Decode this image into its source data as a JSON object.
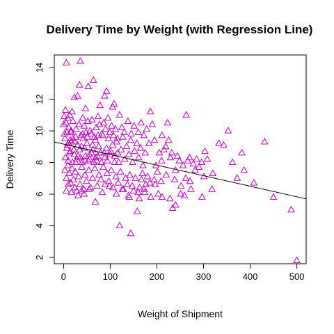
{
  "chart_data": {
    "type": "scatter",
    "title": "Delivery Time by Weight (with Regression Line)",
    "xlabel": "Weight of Shipment",
    "ylabel": "Delivery Time",
    "xlim": [
      -20,
      520
    ],
    "ylim": [
      1.6,
      14.8
    ],
    "x_ticks": [
      0,
      100,
      200,
      300,
      400,
      500
    ],
    "y_ticks": [
      2,
      4,
      6,
      8,
      10,
      12,
      14
    ],
    "marker": "open-triangle",
    "marker_color": "#C000C0",
    "grid": false,
    "regression_line": {
      "x": [
        -20,
        520
      ],
      "y": [
        9.3,
        5.7
      ],
      "color": "#000000"
    },
    "points": [
      [
        6,
        14.3
      ],
      [
        36,
        14.4
      ],
      [
        53,
        12.8
      ],
      [
        64,
        13.2
      ],
      [
        34,
        12.9
      ],
      [
        88,
        12.2
      ],
      [
        92,
        12.5
      ],
      [
        108,
        11.7
      ],
      [
        120,
        11.0
      ],
      [
        105,
        11.5
      ],
      [
        23,
        12.1
      ],
      [
        30,
        12.2
      ],
      [
        18,
        11.2
      ],
      [
        47,
        11.4
      ],
      [
        78,
        11.6
      ],
      [
        186,
        11.2
      ],
      [
        190,
        10.4
      ],
      [
        223,
        10.5
      ],
      [
        263,
        11.0
      ],
      [
        353,
        10.0
      ],
      [
        431,
        9.3
      ],
      [
        343,
        9.1
      ],
      [
        333,
        9.2
      ],
      [
        303,
        8.7
      ],
      [
        296,
        8.0
      ],
      [
        285,
        8.2
      ],
      [
        270,
        8.3
      ],
      [
        248,
        8.1
      ],
      [
        232,
        8.6
      ],
      [
        225,
        9.4
      ],
      [
        211,
        9.7
      ],
      [
        195,
        9.4
      ],
      [
        210,
        8.1
      ],
      [
        240,
        7.5
      ],
      [
        262,
        7.0
      ],
      [
        271,
        6.8
      ],
      [
        282,
        7.5
      ],
      [
        301,
        7.1
      ],
      [
        320,
        7.3
      ],
      [
        318,
        6.3
      ],
      [
        297,
        5.8
      ],
      [
        273,
        6.3
      ],
      [
        259,
        5.9
      ],
      [
        251,
        6.0
      ],
      [
        240,
        5.3
      ],
      [
        234,
        5.1
      ],
      [
        228,
        5.7
      ],
      [
        211,
        5.8
      ],
      [
        203,
        6.0
      ],
      [
        196,
        6.6
      ],
      [
        185,
        6.7
      ],
      [
        167,
        6.9
      ],
      [
        158,
        4.9
      ],
      [
        144,
        3.5
      ],
      [
        120,
        4.0
      ],
      [
        141,
        5.8
      ],
      [
        160,
        6.1
      ],
      [
        173,
        6.3
      ],
      [
        180,
        7.1
      ],
      [
        198,
        7.8
      ],
      [
        209,
        6.8
      ],
      [
        220,
        7.2
      ],
      [
        238,
        6.9
      ],
      [
        252,
        6.5
      ],
      [
        372,
        7.0
      ],
      [
        387,
        7.5
      ],
      [
        362,
        8.0
      ],
      [
        382,
        8.6
      ],
      [
        408,
        6.7
      ],
      [
        450,
        5.8
      ],
      [
        488,
        5.0
      ],
      [
        500,
        1.8
      ],
      [
        14,
        8.7
      ],
      [
        17,
        9.3
      ],
      [
        22,
        8.8
      ],
      [
        26,
        9.6
      ],
      [
        31,
        8.4
      ],
      [
        38,
        9.0
      ],
      [
        42,
        9.5
      ],
      [
        45,
        8.9
      ],
      [
        50,
        9.2
      ],
      [
        55,
        8.5
      ],
      [
        59,
        9.8
      ],
      [
        63,
        8.8
      ],
      [
        68,
        9.4
      ],
      [
        71,
        8.1
      ],
      [
        75,
        9.0
      ],
      [
        79,
        8.6
      ],
      [
        84,
        9.7
      ],
      [
        88,
        8.3
      ],
      [
        92,
        8.9
      ],
      [
        96,
        9.5
      ],
      [
        101,
        8.7
      ],
      [
        105,
        9.1
      ],
      [
        110,
        8.4
      ],
      [
        114,
        9.3
      ],
      [
        118,
        8.0
      ],
      [
        123,
        8.8
      ],
      [
        127,
        9.6
      ],
      [
        131,
        8.2
      ],
      [
        135,
        9.0
      ],
      [
        140,
        8.5
      ],
      [
        144,
        9.4
      ],
      [
        148,
        8.0
      ],
      [
        152,
        8.7
      ],
      [
        157,
        9.2
      ],
      [
        161,
        8.3
      ],
      [
        165,
        8.9
      ],
      [
        170,
        7.8
      ],
      [
        175,
        8.6
      ],
      [
        2,
        9.8
      ],
      [
        5,
        10.5
      ],
      [
        8,
        9.1
      ],
      [
        11,
        10.2
      ],
      [
        13,
        8.6
      ],
      [
        16,
        9.9
      ],
      [
        20,
        10.6
      ],
      [
        24,
        9.3
      ],
      [
        27,
        10.1
      ],
      [
        33,
        10.4
      ],
      [
        37,
        9.7
      ],
      [
        41,
        10.8
      ],
      [
        44,
        10.3
      ],
      [
        48,
        9.9
      ],
      [
        52,
        10.6
      ],
      [
        57,
        10.0
      ],
      [
        61,
        10.7
      ],
      [
        66,
        9.6
      ],
      [
        70,
        10.2
      ],
      [
        74,
        10.9
      ],
      [
        77,
        10.4
      ],
      [
        82,
        9.8
      ],
      [
        86,
        10.5
      ],
      [
        90,
        10.1
      ],
      [
        95,
        10.8
      ],
      [
        99,
        9.9
      ],
      [
        103,
        10.3
      ],
      [
        107,
        9.7
      ],
      [
        111,
        10.1
      ],
      [
        115,
        9.5
      ],
      [
        125,
        10.2
      ],
      [
        130,
        9.9
      ],
      [
        138,
        10.6
      ],
      [
        145,
        9.8
      ],
      [
        151,
        10.3
      ],
      [
        160,
        9.9
      ],
      [
        166,
        10.5
      ],
      [
        172,
        9.7
      ],
      [
        178,
        10.1
      ],
      [
        183,
        9.2
      ],
      [
        3,
        7.5
      ],
      [
        6,
        7.0
      ],
      [
        9,
        7.8
      ],
      [
        12,
        7.3
      ],
      [
        15,
        6.7
      ],
      [
        18,
        7.6
      ],
      [
        21,
        6.9
      ],
      [
        25,
        7.4
      ],
      [
        28,
        6.2
      ],
      [
        32,
        7.1
      ],
      [
        35,
        6.6
      ],
      [
        39,
        7.7
      ],
      [
        43,
        6.3
      ],
      [
        46,
        7.2
      ],
      [
        49,
        6.8
      ],
      [
        54,
        7.5
      ],
      [
        58,
        6.4
      ],
      [
        62,
        7.0
      ],
      [
        67,
        7.6
      ],
      [
        72,
        6.5
      ],
      [
        76,
        7.2
      ],
      [
        80,
        6.9
      ],
      [
        85,
        7.7
      ],
      [
        89,
        6.6
      ],
      [
        93,
        7.3
      ],
      [
        97,
        6.8
      ],
      [
        102,
        7.5
      ],
      [
        106,
        6.4
      ],
      [
        112,
        7.1
      ],
      [
        117,
        6.7
      ],
      [
        122,
        7.4
      ],
      [
        128,
        6.3
      ],
      [
        133,
        7.0
      ],
      [
        137,
        6.6
      ],
      [
        142,
        7.2
      ],
      [
        147,
        6.5
      ],
      [
        154,
        7.0
      ],
      [
        163,
        6.4
      ],
      [
        169,
        7.3
      ],
      [
        176,
        6.6
      ],
      [
        4,
        8.3
      ],
      [
        7,
        8.9
      ],
      [
        10,
        8.1
      ],
      [
        14,
        9.4
      ],
      [
        19,
        8.0
      ],
      [
        23,
        8.5
      ],
      [
        29,
        8.2
      ],
      [
        34,
        8.8
      ],
      [
        40,
        8.0
      ],
      [
        47,
        8.4
      ],
      [
        53,
        8.1
      ],
      [
        60,
        8.6
      ],
      [
        65,
        8.0
      ],
      [
        73,
        8.4
      ],
      [
        81,
        8.0
      ],
      [
        87,
        8.6
      ],
      [
        94,
        8.1
      ],
      [
        100,
        8.5
      ],
      [
        109,
        8.0
      ],
      [
        116,
        8.6
      ],
      [
        1,
        10.9
      ],
      [
        4,
        11.3
      ],
      [
        9,
        10.8
      ],
      [
        13,
        11.0
      ],
      [
        0,
        10.4
      ],
      [
        3,
        9.5
      ],
      [
        7,
        9.9
      ],
      [
        11,
        9.2
      ],
      [
        16,
        10.0
      ],
      [
        20,
        9.5
      ],
      [
        26,
        8.0
      ],
      [
        30,
        9.1
      ],
      [
        36,
        8.3
      ],
      [
        41,
        9.8
      ],
      [
        46,
        8.1
      ],
      [
        51,
        9.6
      ],
      [
        56,
        8.2
      ],
      [
        62,
        9.1
      ],
      [
        69,
        8.3
      ],
      [
        74,
        9.7
      ],
      [
        6,
        6.2
      ],
      [
        10,
        6.6
      ],
      [
        17,
        6.1
      ],
      [
        24,
        6.4
      ],
      [
        31,
        5.9
      ],
      [
        38,
        6.2
      ],
      [
        44,
        6.0
      ],
      [
        55,
        6.3
      ],
      [
        68,
        5.5
      ],
      [
        83,
        6.1
      ],
      [
        98,
        6.5
      ],
      [
        113,
        6.0
      ],
      [
        126,
        6.3
      ],
      [
        139,
        5.9
      ],
      [
        150,
        6.2
      ],
      [
        162,
        5.7
      ],
      [
        174,
        6.1
      ],
      [
        187,
        5.8
      ],
      [
        194,
        6.9
      ],
      [
        201,
        7.4
      ],
      [
        205,
        8.6
      ],
      [
        215,
        8.8
      ],
      [
        219,
        9.0
      ],
      [
        229,
        8.3
      ],
      [
        244,
        8.4
      ],
      [
        256,
        7.8
      ],
      [
        266,
        8.1
      ],
      [
        278,
        7.9
      ],
      [
        290,
        7.7
      ],
      [
        308,
        8.2
      ]
    ]
  }
}
